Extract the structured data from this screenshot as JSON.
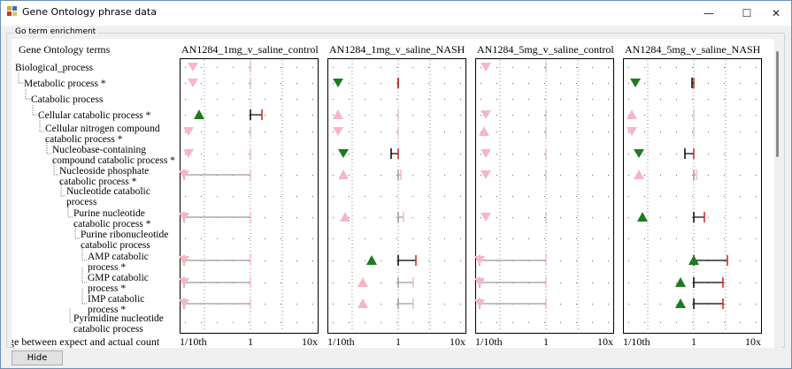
{
  "window": {
    "title": "Gene Ontology phrase data",
    "minimize_glyph": "—",
    "maximize_glyph": "☐",
    "close_glyph": "✕"
  },
  "group_label": "Go term enrichment",
  "tree_header": "Gene Ontology terms",
  "footer_label": "ge between expect and actual count",
  "hide_label": "Hide",
  "terms": [
    {
      "id": "biological_process",
      "lines": [
        "Biological_process"
      ]
    },
    {
      "id": "metabolic",
      "lines": [
        "Metabolic process *"
      ]
    },
    {
      "id": "catabolic",
      "lines": [
        "Catabolic process"
      ]
    },
    {
      "id": "cellular_catabolic",
      "lines": [
        "Cellular catabolic process *"
      ]
    },
    {
      "id": "cellular_nitrogen",
      "lines": [
        "Cellular nitrogen compound",
        "catabolic process *"
      ]
    },
    {
      "id": "nucleobase",
      "lines": [
        "Nucleobase-containing",
        "compound catabolic process *"
      ]
    },
    {
      "id": "nucleoside_phosphate",
      "lines": [
        "Nucleoside phosphate",
        "catabolic process *"
      ]
    },
    {
      "id": "nucleotide",
      "lines": [
        "Nucleotide catabolic",
        "process"
      ]
    },
    {
      "id": "purine_nucleotide",
      "lines": [
        "Purine nucleotide",
        "catabolic process *"
      ]
    },
    {
      "id": "purine_ribonucleotide",
      "lines": [
        "Purine ribonucleotide",
        "catabolic process"
      ]
    },
    {
      "id": "amp",
      "lines": [
        "AMP catabolic",
        "process *"
      ]
    },
    {
      "id": "gmp",
      "lines": [
        "GMP catabolic",
        "process *"
      ]
    },
    {
      "id": "imp",
      "lines": [
        "IMP catabolic",
        "process *"
      ]
    },
    {
      "id": "pyrimidine",
      "lines": [
        "Pyrimidine nucleotide",
        "catabolic process"
      ]
    }
  ],
  "axis_ticks": [
    "1/10th",
    "1",
    "10x"
  ],
  "colors": {
    "up_sig": "#1f7a1f",
    "down_sig": "#1f7a1f",
    "faint": "#f4b8c4",
    "bar_sig": "#cc2222",
    "bar_faint": "#f4b8c4"
  },
  "columns": [
    {
      "name": "AN1284_1mg_v_saline_control"
    },
    {
      "name": "AN1284_1mg_v_saline_NASH"
    },
    {
      "name": "AN1284_5mg_v_saline_control"
    },
    {
      "name": "AN1284_5mg_v_saline_NASH"
    }
  ]
}
